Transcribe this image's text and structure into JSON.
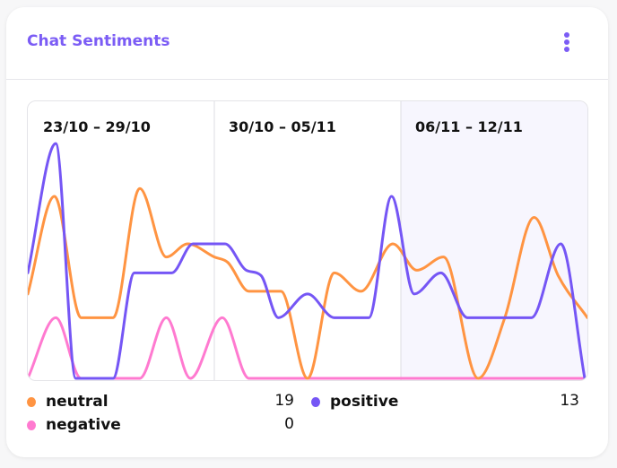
{
  "header": {
    "title": "Chat Sentiments",
    "menu_icon": "kebab-vertical-icon"
  },
  "colors": {
    "accent": "#7b5cf5",
    "neutral": "#ff9442",
    "positive": "#7556f5",
    "negative": "#ff7ad0",
    "highlight_week_bg": "#f7f6fe"
  },
  "legend": [
    {
      "name": "neutral",
      "value": "19"
    },
    {
      "name": "positive",
      "value": "13"
    },
    {
      "name": "negative",
      "value": "0"
    }
  ],
  "chart_data": {
    "type": "line",
    "title": "Chat Sentiments",
    "x_unit": "days since 23/10",
    "xlim": [
      0,
      21
    ],
    "ylim": [
      0,
      10.3
    ],
    "grid": false,
    "week_labels": [
      "23/10 – 29/10",
      "30/10 – 05/11",
      "06/11 – 12/11"
    ],
    "highlighted_week": 2,
    "legend_position": "bottom",
    "series": [
      {
        "name": "neutral",
        "total": 19,
        "points": [
          [
            0,
            3.2
          ],
          [
            1,
            6.9
          ],
          [
            2,
            2.3
          ],
          [
            3.2,
            2.3
          ],
          [
            4.2,
            7.2
          ],
          [
            5.2,
            4.6
          ],
          [
            6,
            5.1
          ],
          [
            7,
            4.6
          ],
          [
            7.5,
            4.4
          ],
          [
            8.3,
            3.3
          ],
          [
            9.5,
            3.3
          ],
          [
            10.5,
            0
          ],
          [
            11.5,
            4
          ],
          [
            12.5,
            3.3
          ],
          [
            13.7,
            5.1
          ],
          [
            14.6,
            4.1
          ],
          [
            15.6,
            4.6
          ],
          [
            16.9,
            0
          ],
          [
            17.9,
            2.3
          ],
          [
            19,
            6.1
          ],
          [
            19.9,
            3.9
          ],
          [
            21,
            2.3
          ]
        ]
      },
      {
        "name": "positive",
        "total": 13,
        "points": [
          [
            0,
            4
          ],
          [
            1.05,
            8.9
          ],
          [
            1.8,
            0
          ],
          [
            3.2,
            0
          ],
          [
            4,
            4
          ],
          [
            5.4,
            4
          ],
          [
            6.2,
            5.1
          ],
          [
            7.4,
            5.1
          ],
          [
            8.2,
            4.1
          ],
          [
            8.75,
            3.9
          ],
          [
            9.4,
            2.3
          ],
          [
            10.5,
            3.2
          ],
          [
            11.5,
            2.3
          ],
          [
            12.8,
            2.3
          ],
          [
            13.65,
            6.9
          ],
          [
            14.5,
            3.2
          ],
          [
            15.5,
            4
          ],
          [
            16.5,
            2.3
          ],
          [
            18.9,
            2.3
          ],
          [
            20,
            5.1
          ],
          [
            20.9,
            0
          ]
        ]
      },
      {
        "name": "negative",
        "total": 0,
        "points": [
          [
            0,
            0
          ],
          [
            1.05,
            2.3
          ],
          [
            2,
            0
          ],
          [
            4.2,
            0
          ],
          [
            5.2,
            2.3
          ],
          [
            6.1,
            0
          ],
          [
            7.3,
            2.3
          ],
          [
            8.3,
            0
          ],
          [
            21,
            0
          ]
        ]
      }
    ]
  }
}
